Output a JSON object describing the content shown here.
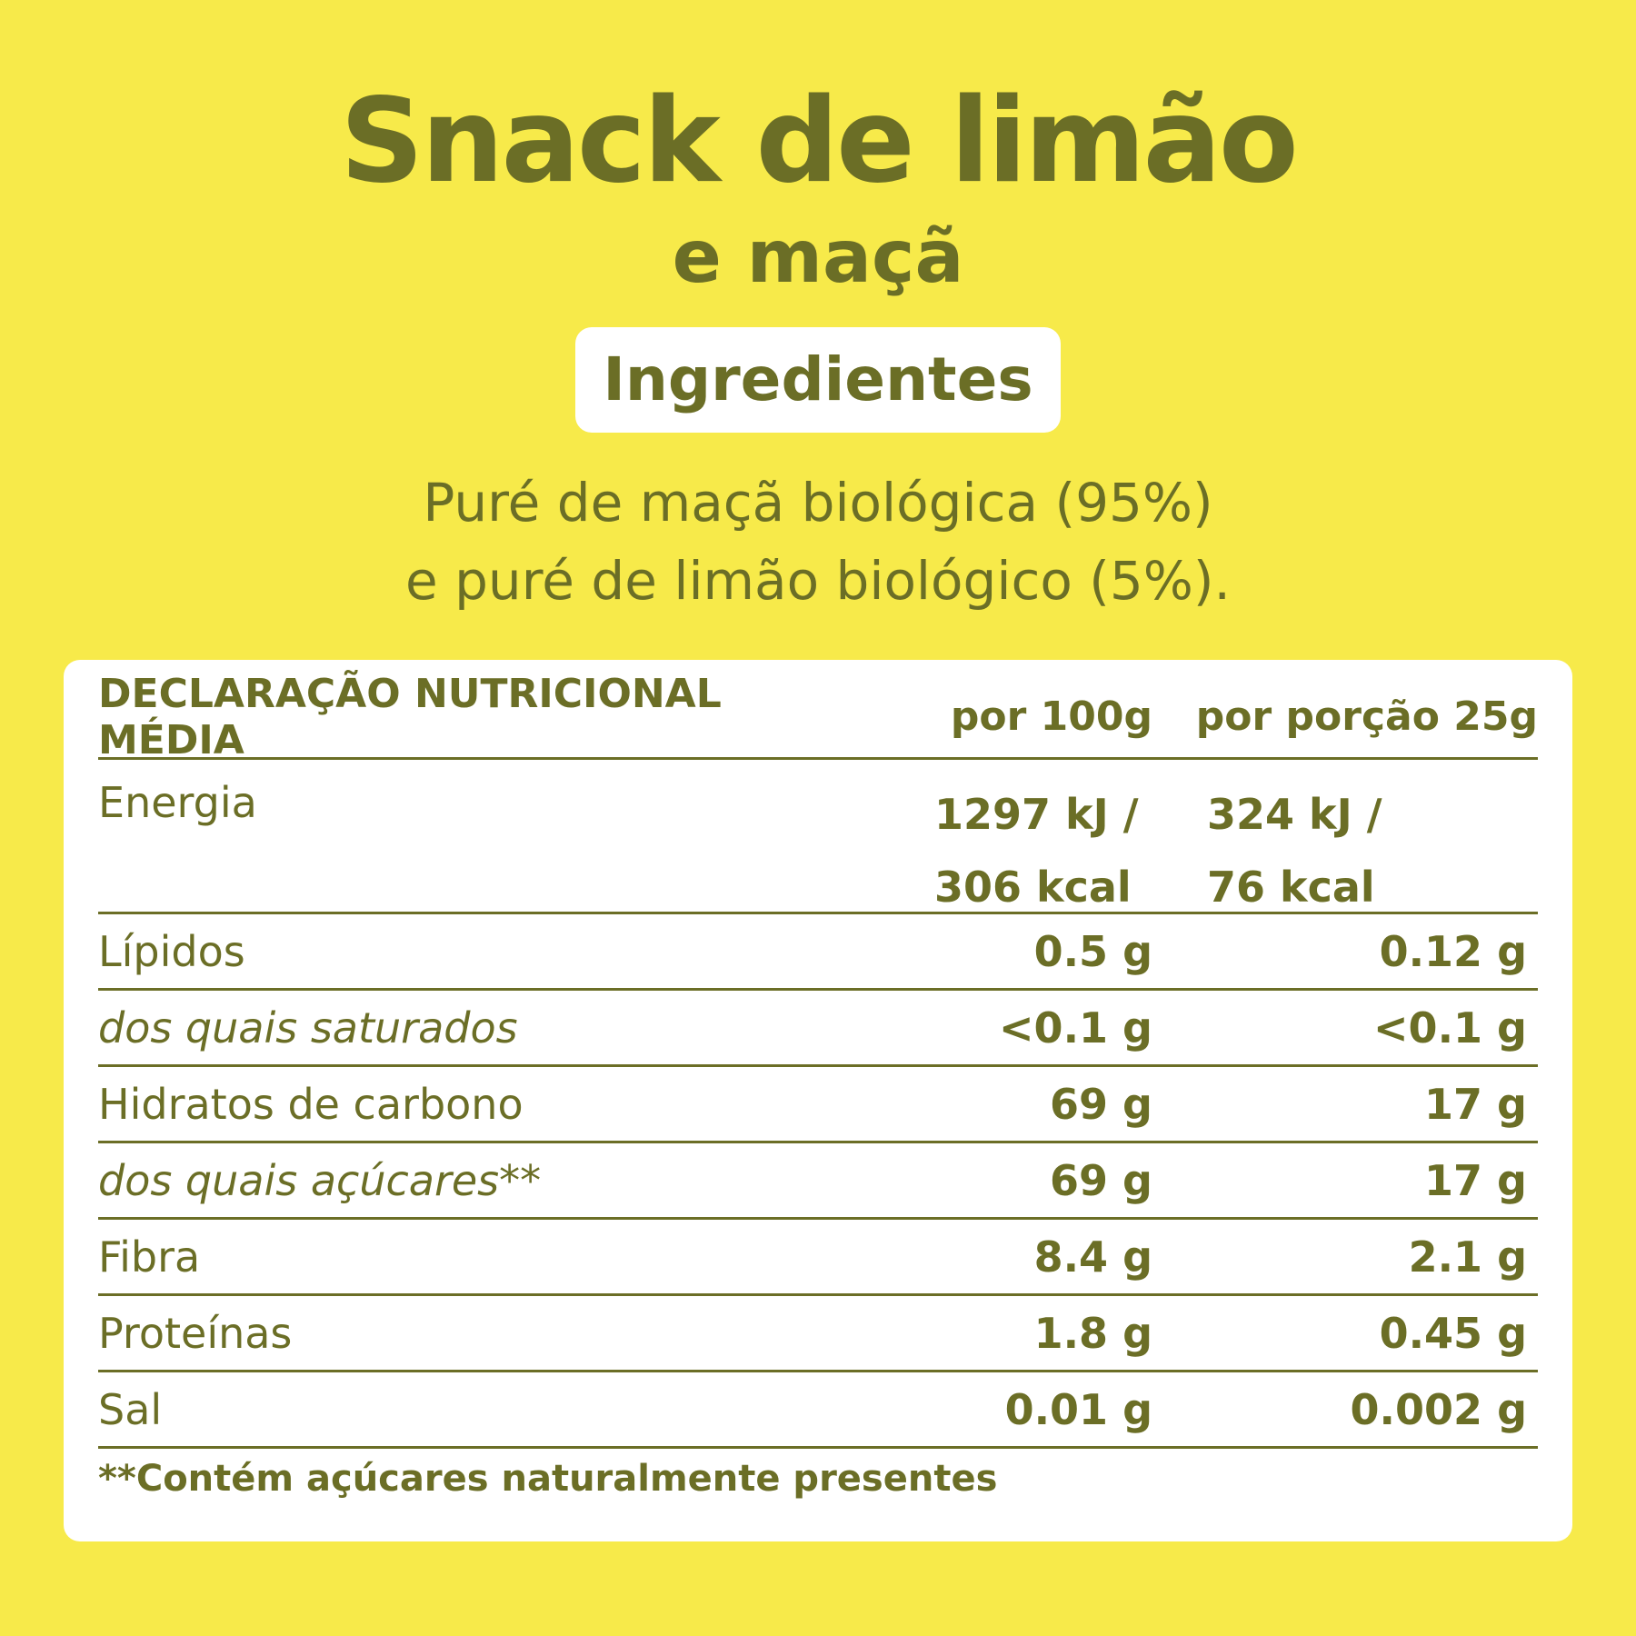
{
  "title": "Snack de limão",
  "subtitle": "e maçã",
  "ingredients_label": "Ingredientes",
  "ingredients_lines": [
    "Puré de maçã biológica (95%)",
    "e puré de limão biológico (5%)."
  ],
  "table": {
    "headers": [
      "DECLARAÇÃO NUTRICIONAL MÉDIA",
      "por 100g",
      "por porção 25g"
    ],
    "energy": {
      "label": "Energia",
      "per100_kj": "1297 kJ /",
      "per100_kcal": "306 kcal",
      "portion_kj": "324 kJ /",
      "portion_kcal": "76 kcal"
    },
    "rows": [
      {
        "label": "Lípidos",
        "per100": "0.5 g",
        "portion": "0.12 g",
        "italic": false
      },
      {
        "label": "dos quais saturados",
        "per100": "<0.1 g",
        "portion": "<0.1 g",
        "italic": true
      },
      {
        "label": "Hidratos de carbono",
        "per100": "69 g",
        "portion": "17 g",
        "italic": false
      },
      {
        "label": "dos quais açúcares**",
        "per100": "69 g",
        "portion": "17 g",
        "italic": true
      },
      {
        "label": "Fibra",
        "per100": "8.4 g",
        "portion": "2.1 g",
        "italic": false
      },
      {
        "label": "Proteínas",
        "per100": "1.8 g",
        "portion": "0.45 g",
        "italic": false
      },
      {
        "label": "Sal",
        "per100": "0.01 g",
        "portion": "0.002 g",
        "italic": false
      }
    ]
  },
  "footnote": "**Contém açúcares naturalmente presentes",
  "colors": {
    "background": "#f7ea4a",
    "text": "#6b6e26",
    "card": "#ffffff"
  }
}
